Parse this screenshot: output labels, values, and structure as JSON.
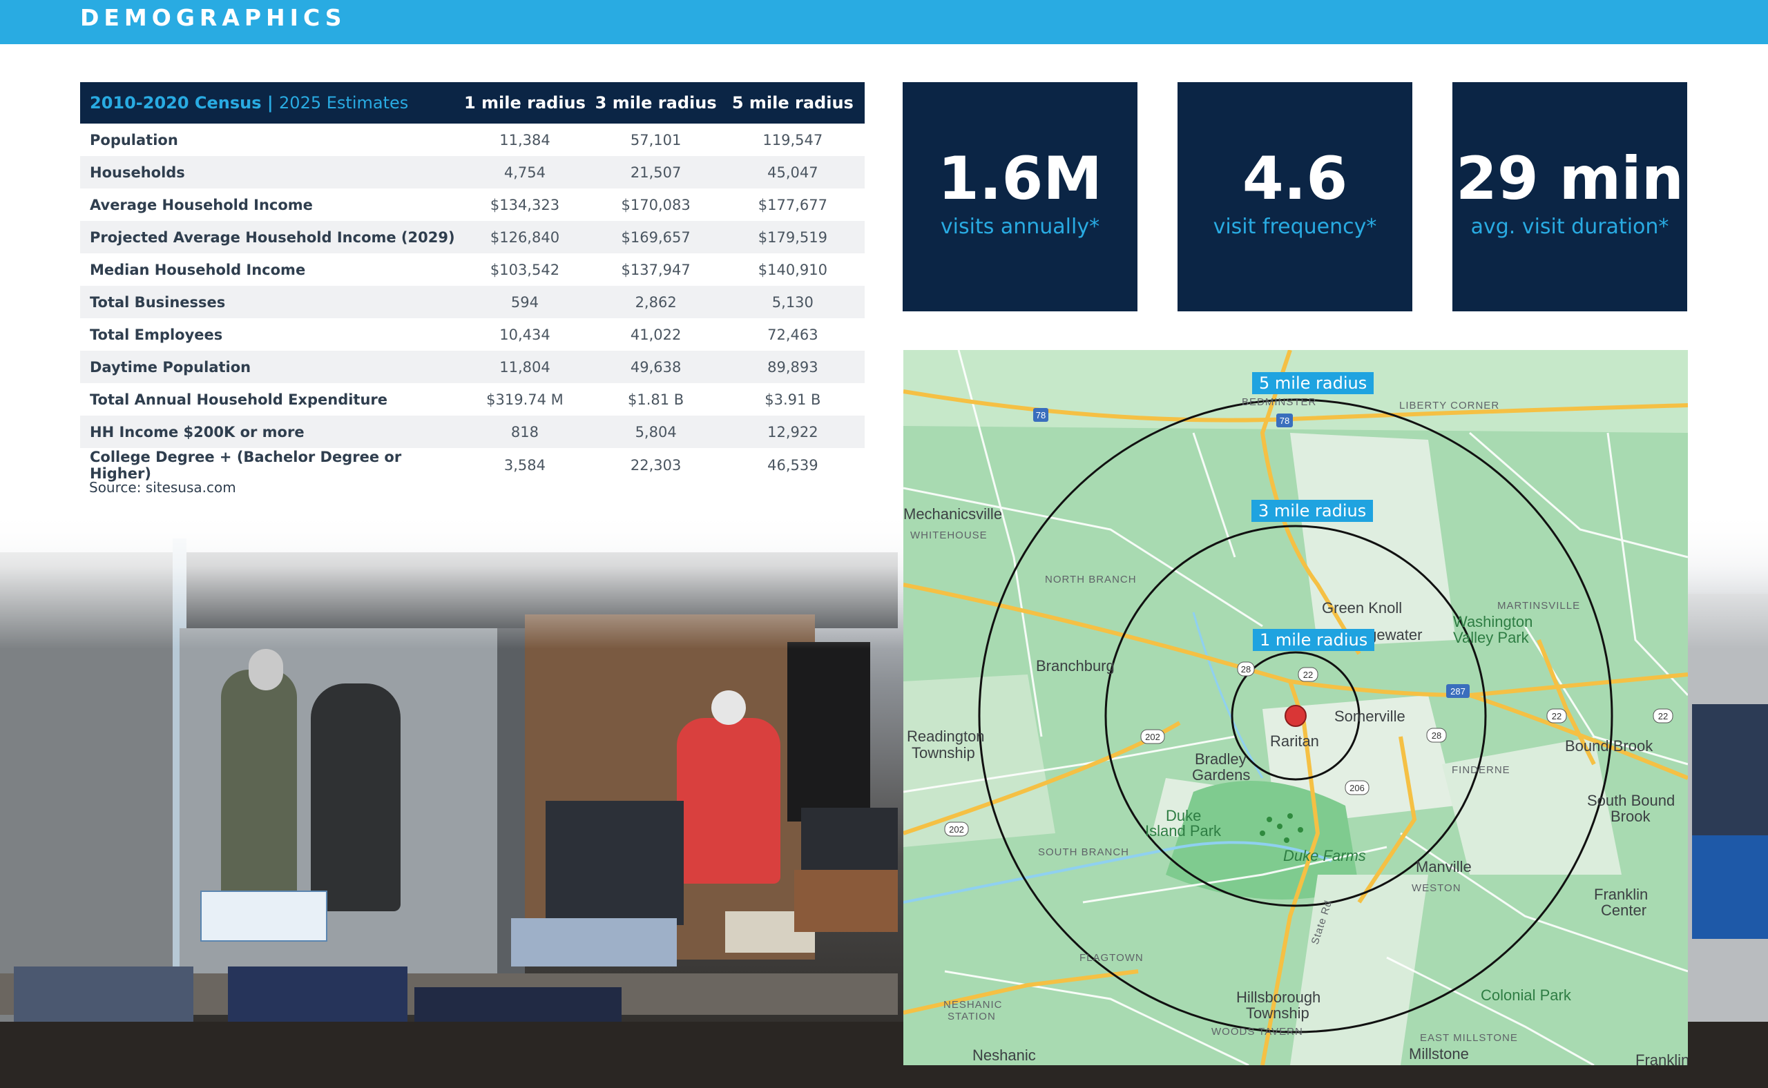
{
  "header": {
    "title": "DEMOGRAPHICS"
  },
  "table": {
    "heading_years": "2010-2020 Census",
    "heading_sep": " | ",
    "heading_estimates": "2025 Estimates",
    "columns": [
      "1 mile radius",
      "3 mile radius",
      "5 mile radius"
    ],
    "rows": [
      {
        "label": "Population",
        "values": [
          "11,384",
          "57,101",
          "119,547"
        ]
      },
      {
        "label": "Households",
        "values": [
          "4,754",
          "21,507",
          "45,047"
        ]
      },
      {
        "label": "Average Household Income",
        "values": [
          "$134,323",
          "$170,083",
          "$177,677"
        ]
      },
      {
        "label": "Projected Average Household Income (2029)",
        "values": [
          "$126,840",
          "$169,657",
          "$179,519"
        ]
      },
      {
        "label": "Median Household Income",
        "values": [
          "$103,542",
          "$137,947",
          "$140,910"
        ]
      },
      {
        "label": "Total Businesses",
        "values": [
          "594",
          "2,862",
          "5,130"
        ]
      },
      {
        "label": "Total Employees",
        "values": [
          "10,434",
          "41,022",
          "72,463"
        ]
      },
      {
        "label": "Daytime Population",
        "values": [
          "11,804",
          "49,638",
          "89,893"
        ]
      },
      {
        "label": "Total Annual Household Expenditure",
        "values": [
          "$319.74 M",
          "$1.81 B",
          "$3.91 B"
        ]
      },
      {
        "label": "HH Income $200K or more",
        "values": [
          "818",
          "5,804",
          "12,922"
        ]
      },
      {
        "label": "College Degree + (Bachelor Degree or Higher)",
        "values": [
          "3,584",
          "22,303",
          "46,539"
        ]
      }
    ],
    "source": "Source: sitesusa.com"
  },
  "stats": [
    {
      "value": "1.6M",
      "label": "visits annually*"
    },
    {
      "value": "4.6",
      "label": "visit frequency*"
    },
    {
      "value": "29 min",
      "label": "avg. visit duration*"
    }
  ],
  "map": {
    "radius_labels": [
      "5 mile radius",
      "3 mile radius",
      "1 mile radius"
    ],
    "places": {
      "bedminster": "BEDMINSTER",
      "liberty_corner": "LIBERTY CORNER",
      "mechanicsville": "Mechanicsville",
      "whitehouse": "WHITEHOUSE",
      "north_branch": "NORTH BRANCH",
      "green_knoll": "Green Knoll",
      "bridgewater": "Bridgewater",
      "martinsville": "MARTINSVILLE",
      "washington_valley_park_1": "Washington",
      "washington_valley_park_2": "Valley Park",
      "branchburg": "Branchburg",
      "somerville": "Somerville",
      "raritan": "Raritan",
      "readington_1": "Readington",
      "readington_2": "Township",
      "bradley_1": "Bradley",
      "bradley_2": "Gardens",
      "bound_brook": "Bound Brook",
      "finderne": "FINDERNE",
      "south_bound_brook_1": "South Bound",
      "south_bound_brook_2": "Brook",
      "duke_island_1": "Duke",
      "duke_island_2": "Island Park",
      "duke_farms": "Duke Farms",
      "south_branch": "SOUTH BRANCH",
      "manville": "Manville",
      "weston": "WESTON",
      "franklin_center_1": "Franklin",
      "franklin_center_2": "Center",
      "flagtown": "FLAGTOWN",
      "hillsborough_1": "Hillsborough",
      "hillsborough_2": "Township",
      "neshanic_station_1": "NESHANIC",
      "neshanic_station_2": "STATION",
      "colonial_park": "Colonial Park",
      "woods_tavern": "WOODS TAVERN",
      "east_millstone": "EAST MILLSTONE",
      "neshanic": "Neshanic",
      "millstone": "Millstone",
      "franklin": "Franklin",
      "state_rd": "State Rd"
    },
    "route_shields": [
      "78",
      "78",
      "22",
      "22",
      "22",
      "28",
      "28",
      "287",
      "202",
      "202",
      "206"
    ]
  }
}
